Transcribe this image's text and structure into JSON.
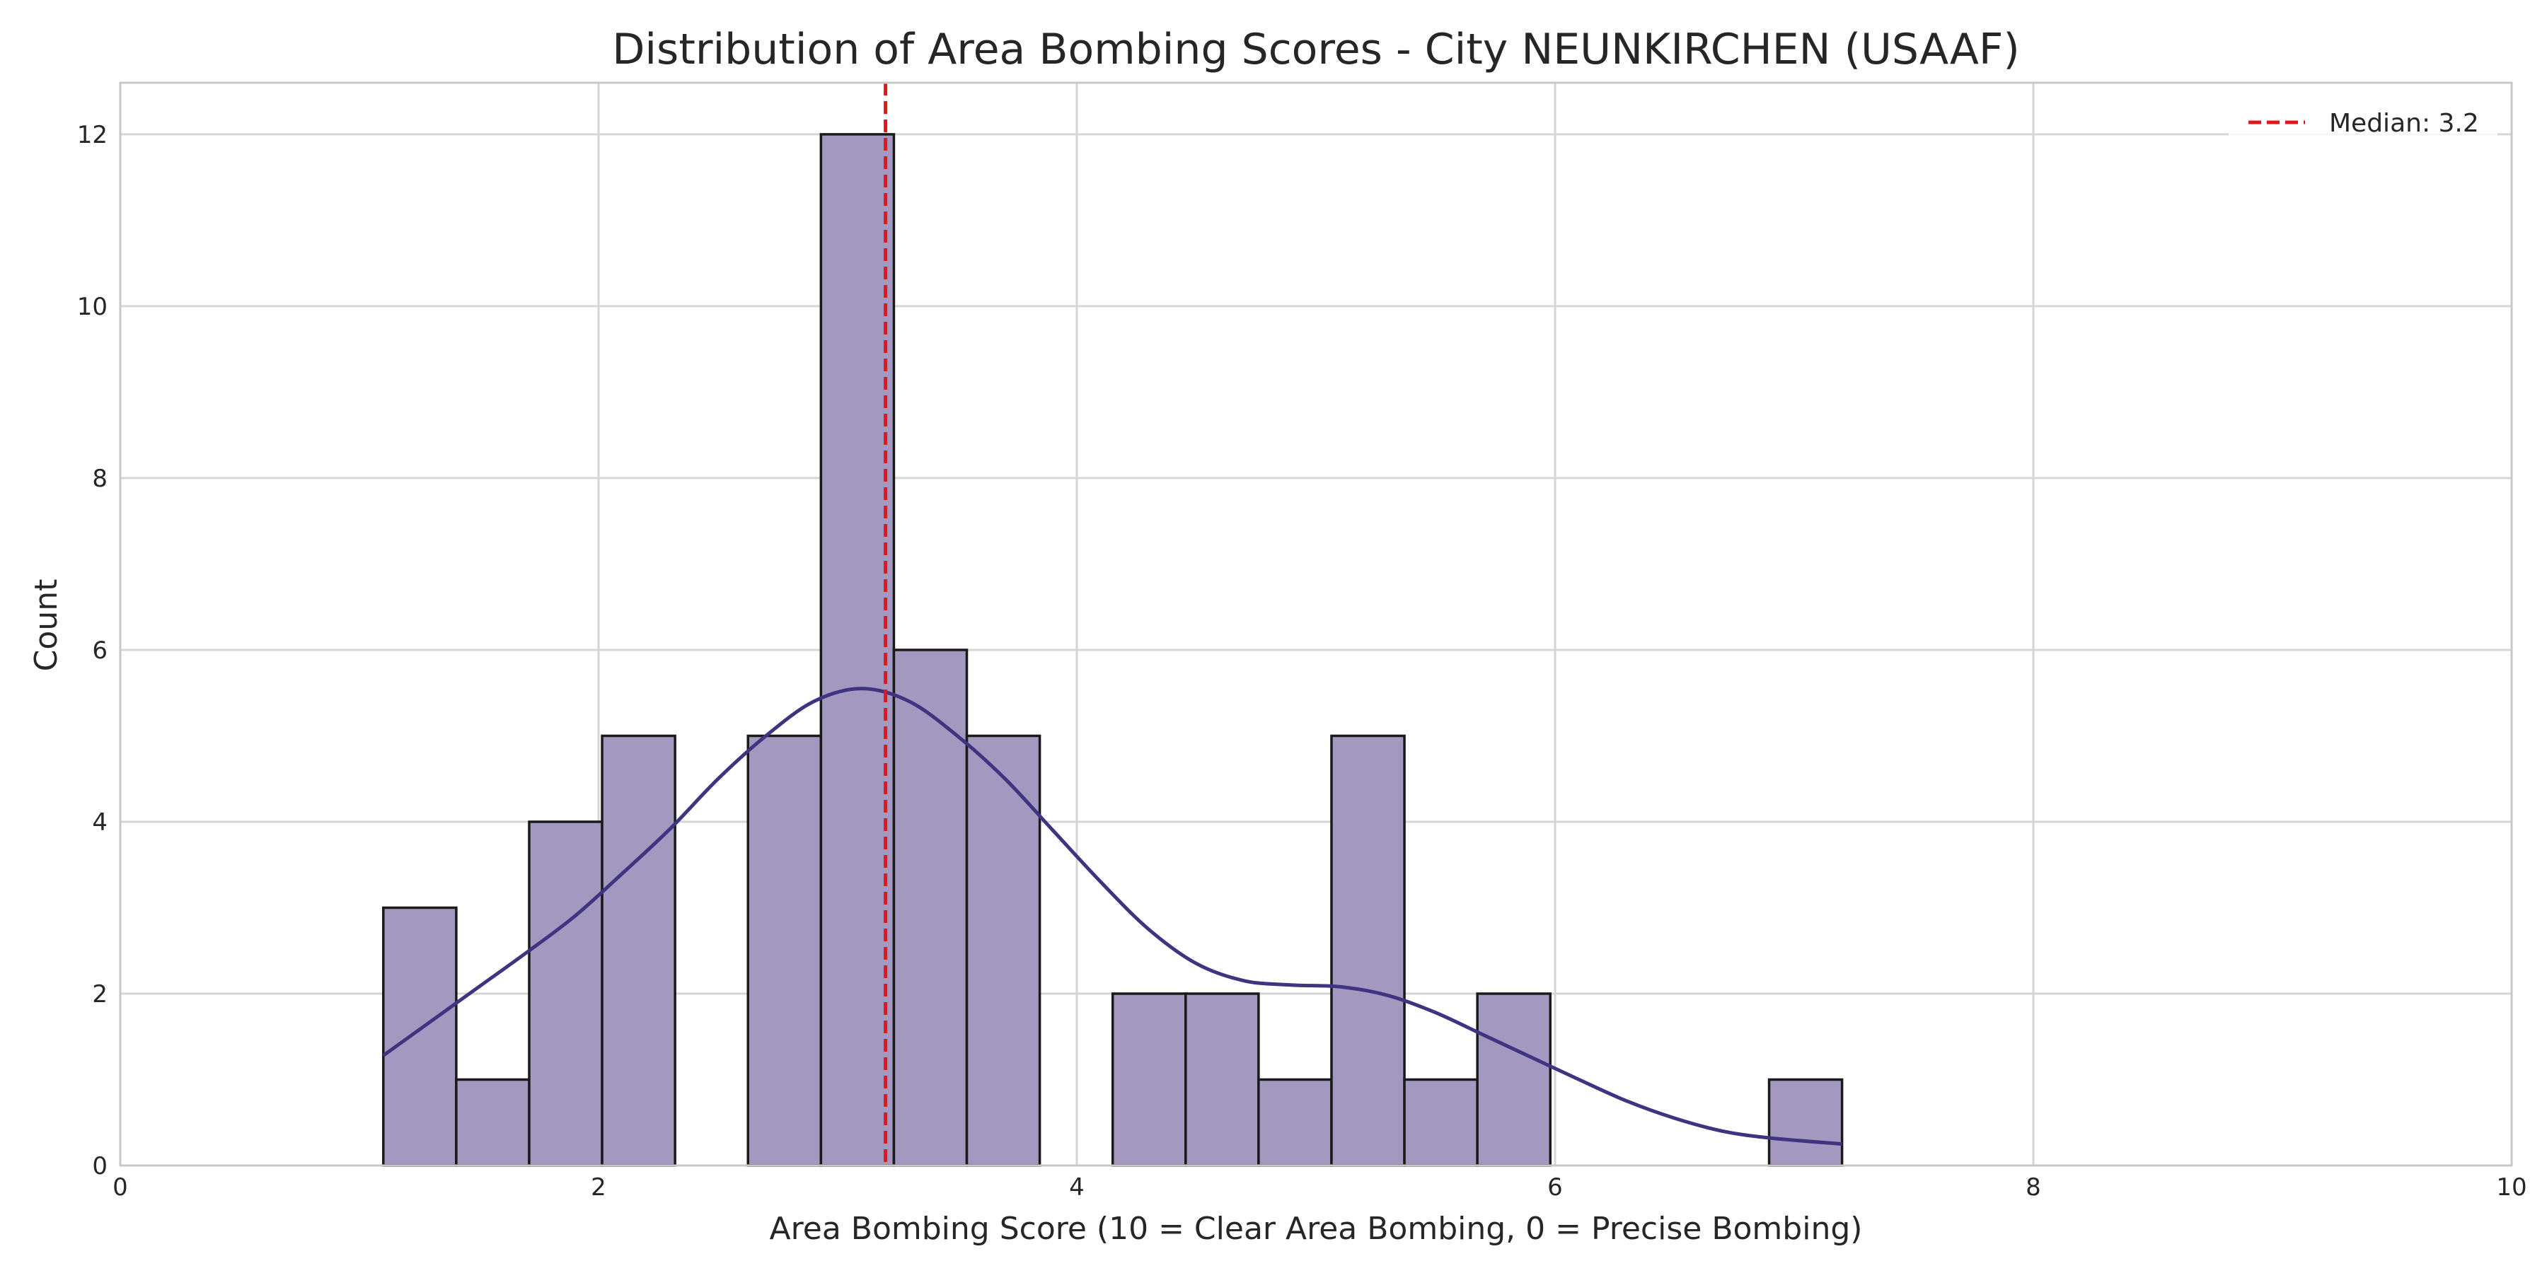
{
  "chart_data": {
    "type": "bar",
    "title": "Distribution of Area Bombing Scores - City NEUNKIRCHEN (USAAF)",
    "xlabel": "Area Bombing Score (10 = Clear Area Bombing, 0 = Precise Bombing)",
    "ylabel": "Count",
    "xlim": [
      0,
      10
    ],
    "ylim": [
      0,
      12.6
    ],
    "xticks": [
      "0",
      "2",
      "4",
      "6",
      "8",
      "10"
    ],
    "yticks": [
      "0",
      "2",
      "4",
      "6",
      "8",
      "10",
      "12"
    ],
    "grid": true,
    "legend_position": "top-right",
    "bins": [
      {
        "x0": 1.1,
        "x1": 1.405,
        "count": 3
      },
      {
        "x0": 1.405,
        "x1": 1.71,
        "count": 1
      },
      {
        "x0": 1.71,
        "x1": 2.015,
        "count": 4
      },
      {
        "x0": 2.015,
        "x1": 2.32,
        "count": 5
      },
      {
        "x0": 2.32,
        "x1": 2.625,
        "count": 0
      },
      {
        "x0": 2.625,
        "x1": 2.93,
        "count": 5
      },
      {
        "x0": 2.93,
        "x1": 3.235,
        "count": 12
      },
      {
        "x0": 3.235,
        "x1": 3.54,
        "count": 6
      },
      {
        "x0": 3.54,
        "x1": 3.845,
        "count": 5
      },
      {
        "x0": 3.845,
        "x1": 4.15,
        "count": 0
      },
      {
        "x0": 4.15,
        "x1": 4.455,
        "count": 2
      },
      {
        "x0": 4.455,
        "x1": 4.76,
        "count": 2
      },
      {
        "x0": 4.76,
        "x1": 5.065,
        "count": 1
      },
      {
        "x0": 5.065,
        "x1": 5.37,
        "count": 5
      },
      {
        "x0": 5.37,
        "x1": 5.675,
        "count": 1
      },
      {
        "x0": 5.675,
        "x1": 5.98,
        "count": 2
      },
      {
        "x0": 5.98,
        "x1": 6.285,
        "count": 0
      },
      {
        "x0": 6.285,
        "x1": 6.59,
        "count": 0
      },
      {
        "x0": 6.59,
        "x1": 6.895,
        "count": 0
      },
      {
        "x0": 6.895,
        "x1": 7.2,
        "count": 1
      }
    ],
    "kde": {
      "x": [
        1.1,
        1.3,
        1.5,
        1.7,
        1.9,
        2.1,
        2.3,
        2.5,
        2.7,
        2.9,
        3.1,
        3.3,
        3.5,
        3.7,
        3.9,
        4.1,
        4.3,
        4.5,
        4.7,
        4.9,
        5.1,
        5.3,
        5.5,
        5.7,
        5.9,
        6.1,
        6.3,
        6.5,
        6.7,
        6.9,
        7.2
      ],
      "y": [
        1.28,
        1.68,
        2.08,
        2.48,
        2.9,
        3.4,
        3.92,
        4.5,
        5.0,
        5.4,
        5.55,
        5.4,
        5.0,
        4.5,
        3.9,
        3.3,
        2.75,
        2.35,
        2.15,
        2.1,
        2.08,
        1.98,
        1.78,
        1.52,
        1.26,
        1.0,
        0.75,
        0.55,
        0.4,
        0.32,
        0.25
      ]
    },
    "median": {
      "value": 3.2,
      "label": "Median: 3.2"
    },
    "colors": {
      "bar_fill": "#a298c0",
      "bar_edge": "#1a1a1a",
      "kde": "#3f3480",
      "median": "#e8141c",
      "grid": "#d6d6d6",
      "spine": "#c8c8c8"
    }
  }
}
